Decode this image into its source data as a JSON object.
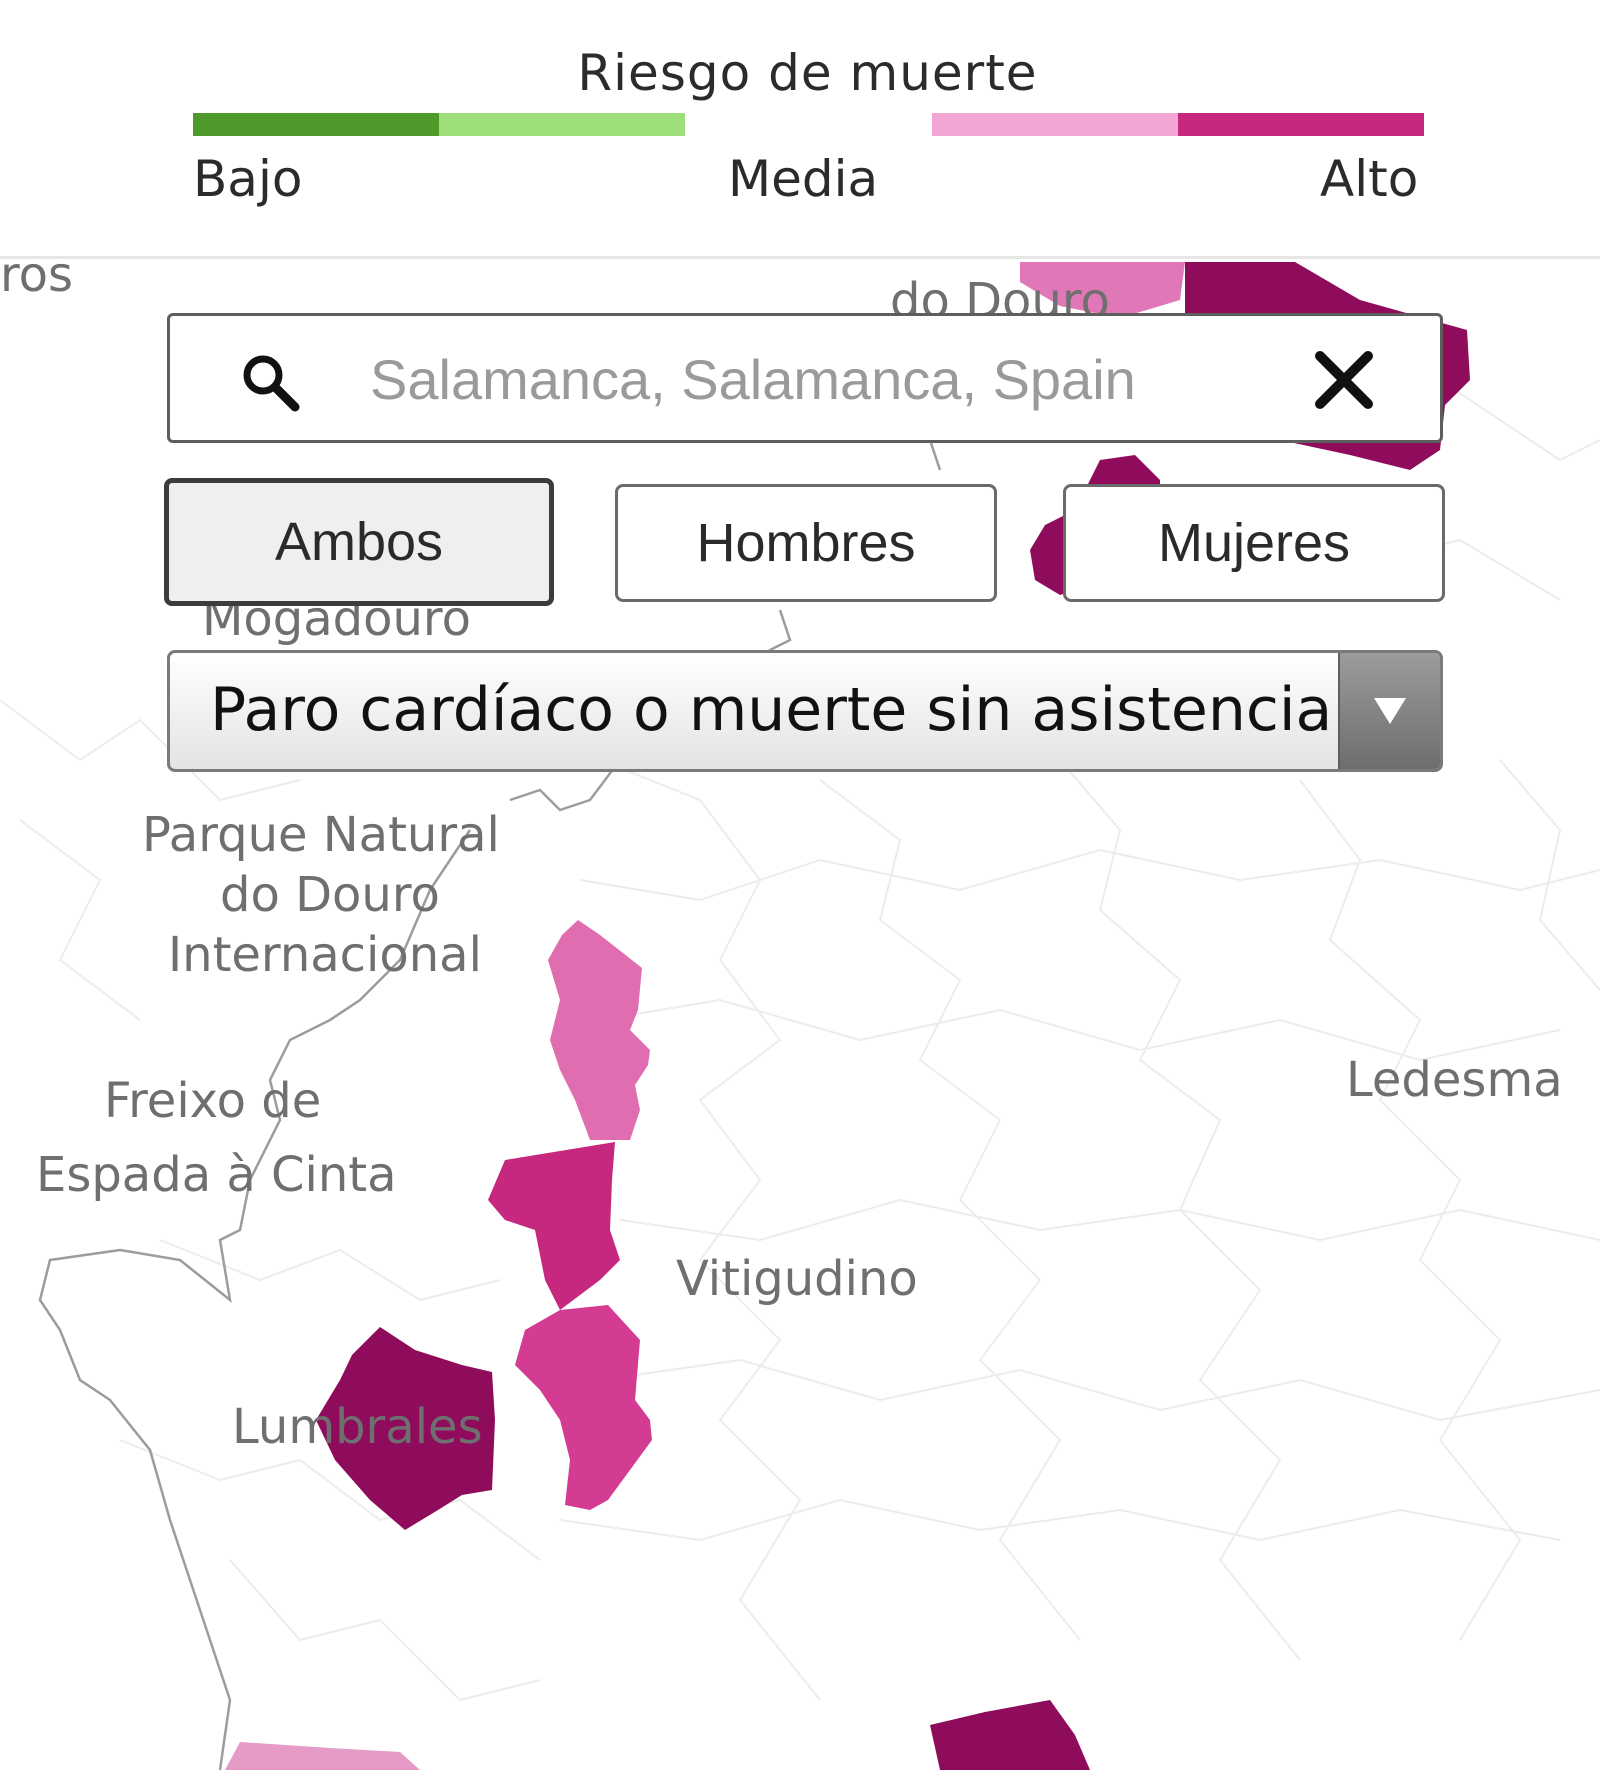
{
  "legend": {
    "title": "Riesgo de muerte",
    "labels": {
      "low": "Bajo",
      "mid": "Media",
      "high": "Alto"
    },
    "colors": [
      "#4f9a2a",
      "#9de07a",
      "#f2a6d3",
      "#c6277f"
    ]
  },
  "search": {
    "placeholder": "Salamanca, Salamanca, Spain",
    "value": "",
    "icon": "search-icon",
    "clear_icon": "close-icon"
  },
  "sex_filter": {
    "options": [
      "Ambos",
      "Hombres",
      "Mujeres"
    ],
    "selected": "Ambos"
  },
  "cause_select": {
    "selected": "Paro cardíaco o muerte sin asistencia",
    "arrow_icon": "chevron-down-icon"
  },
  "map": {
    "labels": [
      "ros",
      "do Douro",
      "Mogadouro",
      "Parque Natural",
      "do Douro",
      "Internacional",
      "Freixo de",
      "Espada à Cinta",
      "Vitigudino",
      "Ledesma",
      "Lumbrales"
    ],
    "risk_colors": {
      "medium_high": "#e078b8",
      "high": "#c6277f",
      "very_high": "#8f0c5c"
    }
  }
}
